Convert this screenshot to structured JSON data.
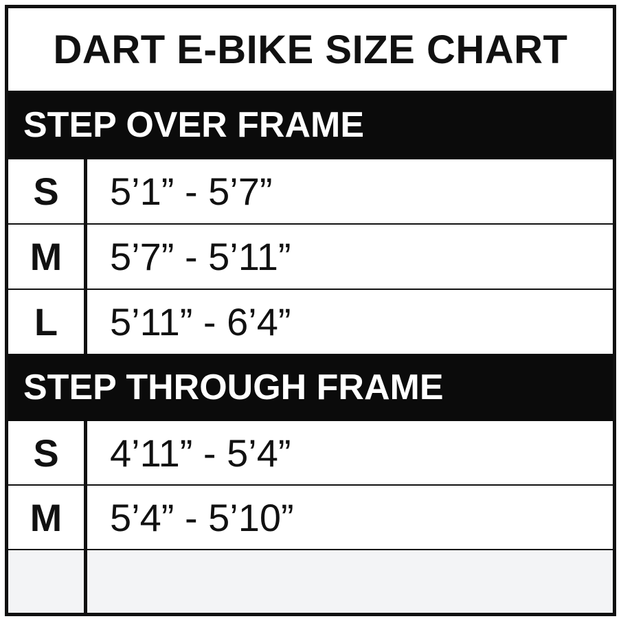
{
  "title": "DART E-BIKE SIZE CHART",
  "sections": [
    {
      "heading": "STEP OVER FRAME",
      "rows": [
        {
          "size": "S",
          "range": "5’1” - 5’7”"
        },
        {
          "size": "M",
          "range": "5’7” - 5’11”"
        },
        {
          "size": "L",
          "range": "5’11” - 6’4”"
        }
      ]
    },
    {
      "heading": "STEP THROUGH FRAME",
      "rows": [
        {
          "size": "S",
          "range": "4’11” - 5’4”"
        },
        {
          "size": "M",
          "range": "5’4” - 5’10”"
        },
        {
          "size": "",
          "range": ""
        }
      ]
    }
  ]
}
